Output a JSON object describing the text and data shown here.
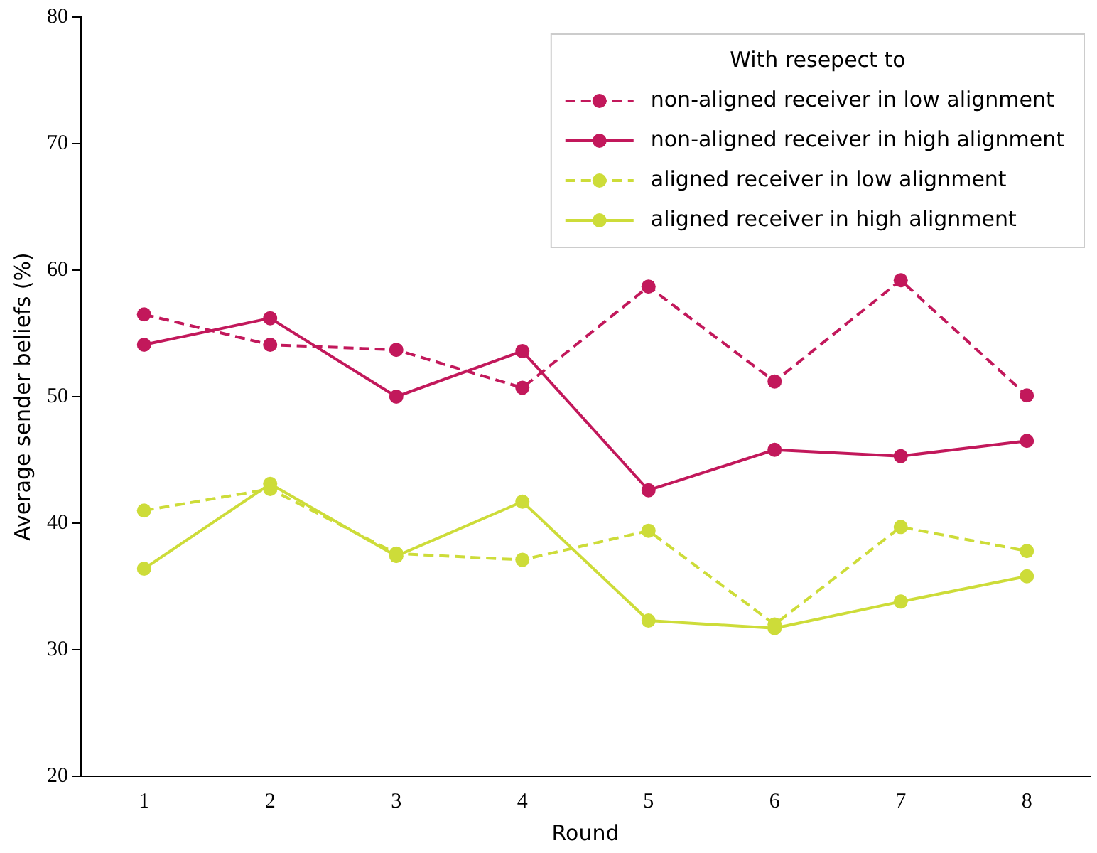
{
  "chart_data": {
    "type": "line",
    "xlabel": "Round",
    "ylabel": "Average sender beliefs (%)",
    "legend_title": "With resepect to",
    "legend": "top right",
    "marker": "circle",
    "grid": false,
    "categories": [
      "1",
      "2",
      "3",
      "4",
      "5",
      "6",
      "7",
      "8"
    ],
    "ylim": [
      20,
      80
    ],
    "yticks": [
      20,
      30,
      40,
      50,
      60,
      70,
      80
    ],
    "series": [
      {
        "name": "non-aligned receiver in low alignment",
        "color": "#c2185b",
        "line_style": "dashed",
        "values": [
          56.5,
          54.1,
          53.7,
          50.7,
          58.7,
          51.2,
          59.2,
          50.1
        ]
      },
      {
        "name": "non-aligned receiver in high alignment",
        "color": "#c2185b",
        "line_style": "solid",
        "values": [
          54.1,
          56.2,
          50.0,
          53.6,
          42.6,
          45.8,
          45.3,
          46.5
        ]
      },
      {
        "name": "aligned receiver in low alignment",
        "color": "#cddc39",
        "line_style": "dashed",
        "values": [
          41.0,
          42.7,
          37.6,
          37.1,
          39.4,
          32.0,
          39.7,
          37.8
        ]
      },
      {
        "name": "aligned receiver in high alignment",
        "color": "#cddc39",
        "line_style": "solid",
        "values": [
          36.4,
          43.1,
          37.4,
          41.7,
          32.3,
          31.7,
          33.8,
          35.8
        ]
      }
    ]
  }
}
